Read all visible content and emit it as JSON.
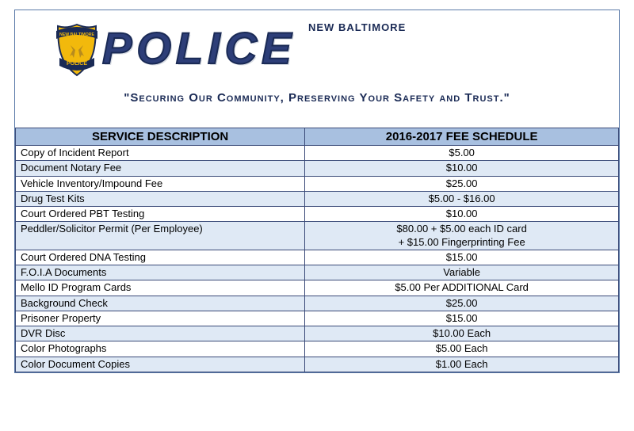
{
  "header": {
    "org_small": "NEW BALTIMORE",
    "org_big": "POLICE",
    "tagline": "\"Securing Our Community, Preserving Your Safety and Trust.\"",
    "badge": {
      "top_text": "NEW BALTIMORE",
      "bottom_text": "POLICE",
      "shield_fill": "#f2b90c",
      "shield_stroke": "#1a2a55",
      "ribbon_fill": "#1a2a55"
    }
  },
  "table": {
    "columns": [
      "SERVICE DESCRIPTION",
      "2016-2017 FEE SCHEDULE"
    ],
    "header_bg": "#a8c0e0",
    "alt_row_bg": "#dfe9f5",
    "border_color": "#3a4a78",
    "rows": [
      {
        "desc": "Copy of Incident Report",
        "fee": "$5.00",
        "alt": false
      },
      {
        "desc": "Document Notary Fee",
        "fee": "$10.00",
        "alt": true
      },
      {
        "desc": "Vehicle Inventory/Impound Fee",
        "fee": "$25.00",
        "alt": false
      },
      {
        "desc": "Drug Test Kits",
        "fee": "$5.00 - $16.00",
        "alt": true
      },
      {
        "desc": "Court Ordered PBT Testing",
        "fee": "$10.00",
        "alt": false
      },
      {
        "desc": "Peddler/Solicitor Permit (Per Employee)",
        "fee": "$80.00 + $5.00 each ID card\n+ $15.00 Fingerprinting Fee",
        "alt": true
      },
      {
        "desc": "Court Ordered DNA Testing",
        "fee": "$15.00",
        "alt": false
      },
      {
        "desc": "F.O.I.A Documents",
        "fee": "Variable",
        "alt": true
      },
      {
        "desc": "Mello ID Program Cards",
        "fee": "$5.00 Per ADDITIONAL  Card",
        "alt": false
      },
      {
        "desc": "Background Check",
        "fee": "$25.00",
        "alt": true
      },
      {
        "desc": "Prisoner Property",
        "fee": "$15.00",
        "alt": false
      },
      {
        "desc": "DVR Disc",
        "fee": "$10.00 Each",
        "alt": true
      },
      {
        "desc": "Color Photographs",
        "fee": "$5.00 Each",
        "alt": false
      },
      {
        "desc": "Color Document Copies",
        "fee": "$1.00 Each",
        "alt": true
      }
    ]
  },
  "colors": {
    "page_border": "#5b7aa8",
    "navy": "#1a2a55",
    "police_fill": "#2d3e78"
  }
}
